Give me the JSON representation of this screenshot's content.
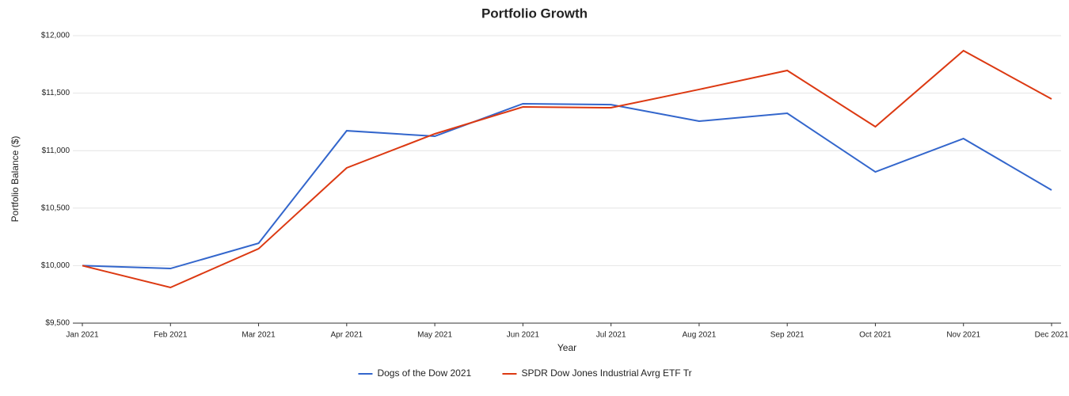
{
  "chart_data": {
    "type": "line",
    "title": "Portfolio Growth",
    "x_label": "Year",
    "y_label": "Portfolio Balance ($)",
    "categories": [
      "Jan 2021",
      "Feb 2021",
      "Mar 2021",
      "Apr 2021",
      "May 2021",
      "Jun 2021",
      "Jul 2021",
      "Aug 2021",
      "Sep 2021",
      "Oct 2021",
      "Nov 2021",
      "Dec 2021"
    ],
    "series": [
      {
        "name": "Dogs of the Dow 2021",
        "color": "#3366cc",
        "values": [
          10000,
          9975,
          10195,
          11173,
          11125,
          11408,
          11400,
          11256,
          11325,
          10815,
          11105,
          10657
        ]
      },
      {
        "name": "SPDR Dow Jones Industrial Avrg ETF Tr",
        "color": "#dc3912",
        "values": [
          10000,
          9810,
          10147,
          10850,
          11146,
          11380,
          11373,
          11532,
          11697,
          11208,
          11869,
          11449
        ]
      }
    ],
    "ylim": [
      9500,
      12000
    ],
    "yticks": [
      {
        "value": 9500,
        "label": "$9,500"
      },
      {
        "value": 10000,
        "label": "$10,000"
      },
      {
        "value": 10500,
        "label": "$10,500"
      },
      {
        "value": 11000,
        "label": "$11,000"
      },
      {
        "value": 11500,
        "label": "$11,500"
      },
      {
        "value": 12000,
        "label": "$12,000"
      }
    ],
    "grid": true,
    "legend": "bottom"
  }
}
